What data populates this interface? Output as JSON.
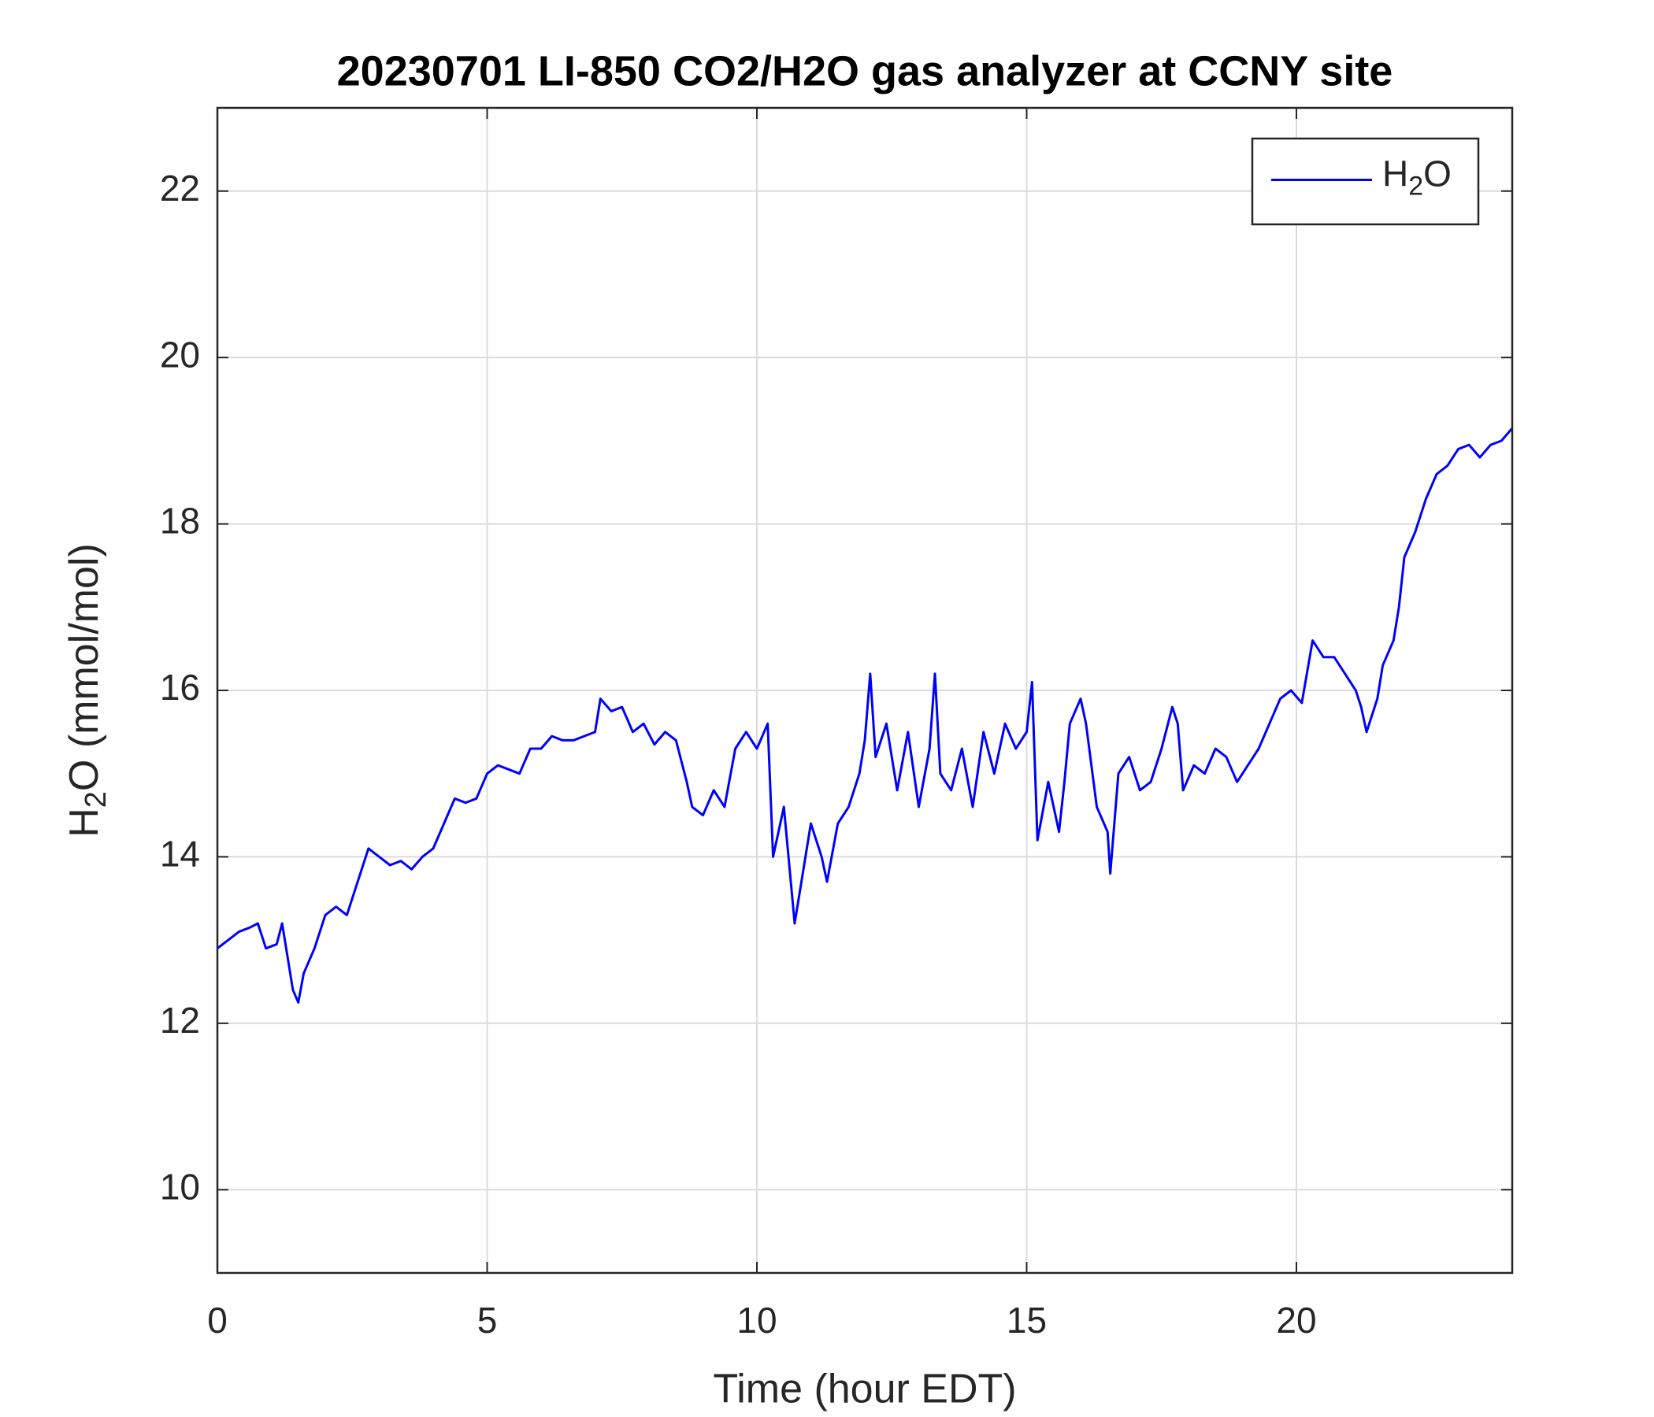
{
  "chart_data": {
    "type": "line",
    "title": "20230701 LI-850 CO2/H2O gas analyzer at CCNY site",
    "xlabel": "Time (hour EDT)",
    "ylabel": [
      "H",
      "2",
      "O (mmol/mol)"
    ],
    "xlim": [
      0,
      24
    ],
    "xticks": [
      0,
      5,
      10,
      15,
      20
    ],
    "ylim": [
      9,
      23
    ],
    "yticks": [
      10,
      12,
      14,
      16,
      18,
      20,
      22
    ],
    "grid": true,
    "legend": "northeast",
    "x": [
      0,
      0.2,
      0.4,
      0.6,
      0.75,
      0.9,
      1.1,
      1.2,
      1.3,
      1.4,
      1.5,
      1.6,
      1.8,
      2.0,
      2.2,
      2.4,
      2.6,
      2.8,
      3.0,
      3.2,
      3.4,
      3.6,
      3.8,
      4.0,
      4.2,
      4.4,
      4.6,
      4.8,
      5.0,
      5.2,
      5.4,
      5.6,
      5.8,
      6.0,
      6.2,
      6.4,
      6.6,
      6.8,
      7.0,
      7.1,
      7.3,
      7.5,
      7.7,
      7.9,
      8.1,
      8.3,
      8.5,
      8.7,
      8.8,
      9.0,
      9.2,
      9.4,
      9.6,
      9.8,
      10.0,
      10.2,
      10.3,
      10.5,
      10.7,
      10.8,
      11.0,
      11.2,
      11.3,
      11.5,
      11.7,
      11.9,
      12.0,
      12.1,
      12.2,
      12.4,
      12.6,
      12.8,
      13.0,
      13.2,
      13.3,
      13.4,
      13.6,
      13.8,
      14.0,
      14.2,
      14.4,
      14.6,
      14.8,
      15.0,
      15.1,
      15.2,
      15.4,
      15.6,
      15.7,
      15.8,
      16.0,
      16.1,
      16.3,
      16.5,
      16.55,
      16.7,
      16.9,
      17.1,
      17.3,
      17.5,
      17.7,
      17.8,
      17.9,
      18.1,
      18.3,
      18.5,
      18.7,
      18.9,
      19.1,
      19.3,
      19.5,
      19.7,
      19.9,
      20.1,
      20.3,
      20.5,
      20.7,
      20.9,
      21.1,
      21.2,
      21.3,
      21.5,
      21.6,
      21.8,
      21.9,
      22.0,
      22.2,
      22.4,
      22.6,
      22.8,
      23.0,
      23.2,
      23.4,
      23.6,
      23.8,
      24.0
    ],
    "series": [
      {
        "name": [
          "H",
          "2",
          "O"
        ],
        "color": "#0000ff",
        "values": [
          12.9,
          13.0,
          13.1,
          13.15,
          13.2,
          12.9,
          12.95,
          13.2,
          12.8,
          12.4,
          12.25,
          12.6,
          12.9,
          13.3,
          13.4,
          13.3,
          13.7,
          14.1,
          14.0,
          13.9,
          13.95,
          13.85,
          14.0,
          14.1,
          14.4,
          14.7,
          14.65,
          14.7,
          15.0,
          15.1,
          15.05,
          15.0,
          15.3,
          15.3,
          15.45,
          15.4,
          15.4,
          15.45,
          15.5,
          15.9,
          15.75,
          15.8,
          15.5,
          15.6,
          15.35,
          15.5,
          15.4,
          14.9,
          14.6,
          14.5,
          14.8,
          14.6,
          15.3,
          15.5,
          15.3,
          15.6,
          14.0,
          14.6,
          13.2,
          13.6,
          14.4,
          14.0,
          13.7,
          14.4,
          14.6,
          15.0,
          15.4,
          16.2,
          15.2,
          15.6,
          14.8,
          15.5,
          14.6,
          15.3,
          16.2,
          15.0,
          14.8,
          15.3,
          14.6,
          15.5,
          15.0,
          15.6,
          15.3,
          15.5,
          16.1,
          14.2,
          14.9,
          14.3,
          14.9,
          15.6,
          15.9,
          15.6,
          14.6,
          14.3,
          13.8,
          15.0,
          15.2,
          14.8,
          14.9,
          15.3,
          15.8,
          15.6,
          14.8,
          15.1,
          15.0,
          15.3,
          15.2,
          14.9,
          15.1,
          15.3,
          15.6,
          15.9,
          16.0,
          15.85,
          16.6,
          16.4,
          16.4,
          16.2,
          16.0,
          15.8,
          15.5,
          15.9,
          16.3,
          16.6,
          17.0,
          17.6,
          17.9,
          18.3,
          18.6,
          18.7,
          18.9,
          18.95,
          18.8,
          18.95,
          19.0,
          19.15
        ]
      }
    ]
  }
}
